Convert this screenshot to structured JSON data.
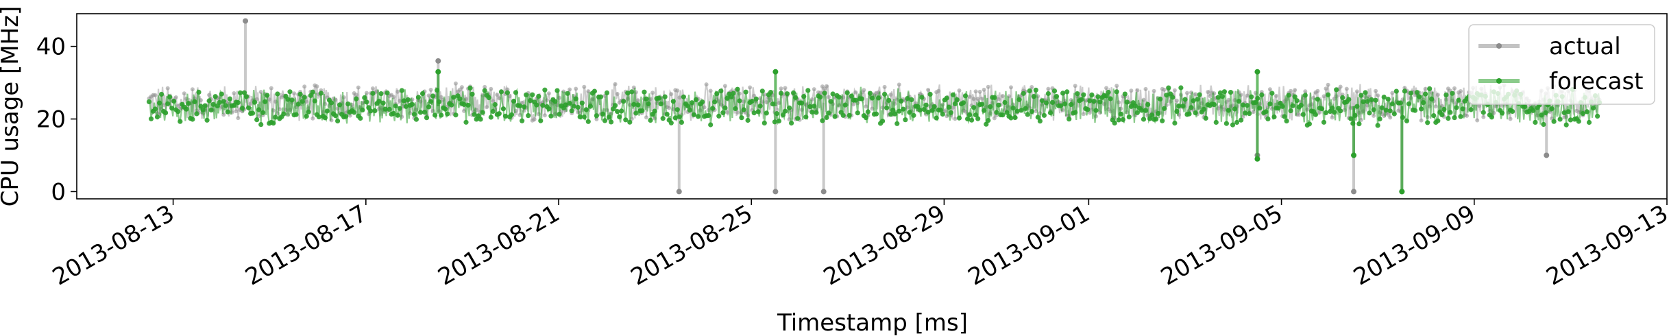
{
  "chart_data": {
    "type": "line",
    "title": "",
    "xlabel": "Timestamp [ms]",
    "ylabel": "CPU usage [MHz]",
    "x_ticks": [
      "2013-08-13",
      "2013-08-17",
      "2013-08-21",
      "2013-08-25",
      "2013-08-29",
      "2013-09-01",
      "2013-09-05",
      "2013-09-09",
      "2013-09-13"
    ],
    "y_ticks": [
      "0",
      "20",
      "40"
    ],
    "xlim": [
      "2013-08-11",
      "2013-09-13"
    ],
    "ylim": [
      -2,
      49
    ],
    "grid": false,
    "legend_position": "top-right",
    "series": [
      {
        "name": "actual",
        "color": "#c3c3c3",
        "marker_color": "#8c8c8c",
        "typical_range": [
          19,
          30
        ],
        "start": "2013-08-12",
        "end": "2013-09-11",
        "spikes": [
          {
            "x": "2013-08-14",
            "y": 47
          },
          {
            "x": "2013-08-18",
            "y": 36
          },
          {
            "x": "2013-08-23",
            "y": 0
          },
          {
            "x": "2013-08-25",
            "y": 0
          },
          {
            "x": "2013-08-26",
            "y": 0
          },
          {
            "x": "2013-09-04",
            "y": 10
          },
          {
            "x": "2013-09-06",
            "y": 0
          },
          {
            "x": "2013-09-07",
            "y": 0
          },
          {
            "x": "2013-09-10",
            "y": 10
          }
        ]
      },
      {
        "name": "forecast",
        "color": "#2ca02c",
        "typical_range": [
          18,
          29
        ],
        "start": "2013-08-12",
        "end": "2013-09-11",
        "spikes": [
          {
            "x": "2013-08-18",
            "y": 33
          },
          {
            "x": "2013-08-25",
            "y": 33
          },
          {
            "x": "2013-09-04",
            "y": 33
          },
          {
            "x": "2013-09-04",
            "y": 9
          },
          {
            "x": "2013-09-06",
            "y": 10
          },
          {
            "x": "2013-09-07",
            "y": 0
          }
        ]
      }
    ]
  }
}
